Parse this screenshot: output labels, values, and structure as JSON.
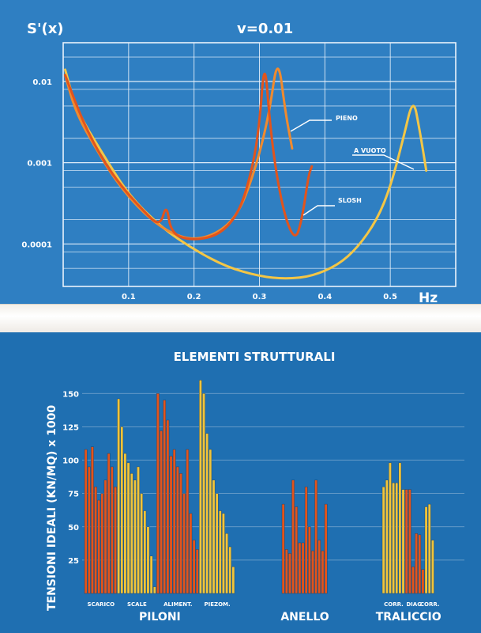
{
  "chart_data": [
    {
      "type": "line",
      "title": "v=0.01",
      "ylabel": "S'(x)",
      "xlabel": "Hz",
      "scale": {
        "y": "log"
      },
      "xlim": [
        0,
        0.6
      ],
      "ylim": [
        3e-05,
        0.03
      ],
      "x_ticks": [
        "0.1",
        "0.2",
        "0.3",
        "0.4",
        "0.5"
      ],
      "y_ticks": [
        "0.01",
        "0.001",
        "0.0001"
      ],
      "grid": true,
      "colors": {
        "background": "#2f7fc2",
        "grid": "#e9f2fb",
        "pieno": "#f08a2e",
        "a_vuoto": "#f3c646",
        "slosh": "#e2541c"
      },
      "series": [
        {
          "name": "PIENO",
          "points": [
            [
              0.003,
              0.012
            ],
            [
              0.02,
              0.004
            ],
            [
              0.05,
              0.0015
            ],
            [
              0.08,
              0.0006
            ],
            [
              0.12,
              0.00025
            ],
            [
              0.16,
              0.00014
            ],
            [
              0.2,
              0.00011
            ],
            [
              0.24,
              0.00014
            ],
            [
              0.27,
              0.00025
            ],
            [
              0.295,
              0.0009
            ],
            [
              0.315,
              0.004
            ],
            [
              0.328,
              0.022
            ],
            [
              0.34,
              0.004
            ],
            [
              0.35,
              0.0015
            ]
          ]
        },
        {
          "name": "A VUOTO",
          "points": [
            [
              0.003,
              0.014
            ],
            [
              0.02,
              0.0045
            ],
            [
              0.06,
              0.0013
            ],
            [
              0.1,
              0.0004
            ],
            [
              0.15,
              0.00016
            ],
            [
              0.2,
              8.5e-05
            ],
            [
              0.25,
              5.2e-05
            ],
            [
              0.3,
              4e-05
            ],
            [
              0.34,
              3.7e-05
            ],
            [
              0.38,
              4e-05
            ],
            [
              0.42,
              5.5e-05
            ],
            [
              0.45,
              9e-05
            ],
            [
              0.48,
              0.0002
            ],
            [
              0.5,
              0.0005
            ],
            [
              0.52,
              0.002
            ],
            [
              0.535,
              0.0065
            ],
            [
              0.545,
              0.0025
            ],
            [
              0.555,
              0.0008
            ]
          ]
        },
        {
          "name": "SLOSH",
          "points": [
            [
              0.003,
              0.012
            ],
            [
              0.03,
              0.0032
            ],
            [
              0.06,
              0.0011
            ],
            [
              0.09,
              0.0005
            ],
            [
              0.12,
              0.00027
            ],
            [
              0.148,
              0.00016
            ],
            [
              0.158,
              0.00032
            ],
            [
              0.165,
              0.00013
            ],
            [
              0.2,
              0.00011
            ],
            [
              0.24,
              0.00013
            ],
            [
              0.27,
              0.00025
            ],
            [
              0.29,
              0.0009
            ],
            [
              0.3,
              0.003
            ],
            [
              0.308,
              0.02
            ],
            [
              0.316,
              0.003
            ],
            [
              0.326,
              0.0007
            ],
            [
              0.34,
              0.0002
            ],
            [
              0.355,
              0.00011
            ],
            [
              0.365,
              0.0002
            ],
            [
              0.375,
              0.0007
            ],
            [
              0.38,
              0.0009
            ]
          ]
        }
      ],
      "labels": [
        "PIENO",
        "A VUOTO",
        "SLOSH"
      ]
    },
    {
      "type": "bar",
      "title": "ELEMENTI STRUTTURALI",
      "ylabel": "TENSIONI IDEALI (KN/MQ) x 1000",
      "ylim": [
        0,
        165
      ],
      "y_ticks": [
        "25",
        "50",
        "75",
        "100",
        "125",
        "150"
      ],
      "grid": true,
      "colors": {
        "background": "#1f6fb1",
        "orange": "#e2541c",
        "yellow": "#f1c43a",
        "grid": "#b9cfe3"
      },
      "subgroup_labels": [
        "SCARICO",
        "SCALE",
        "ALIMENT.",
        "PIEZOM.",
        "CORR.",
        "DIAG.",
        "CORR."
      ],
      "group_labels": [
        "PILONI",
        "ANELLO",
        "TRALICCIO"
      ],
      "groups": [
        {
          "name": "PILONI",
          "subgroups": [
            {
              "label": "SCARICO",
              "color": "orange",
              "values": [
                108,
                95,
                110,
                80,
                70,
                75,
                85,
                105,
                95,
                80
              ]
            },
            {
              "label": "SCALE",
              "color": "yellow",
              "values": [
                146,
                125,
                105,
                98,
                90,
                85,
                95,
                75,
                62,
                50,
                28,
                5
              ]
            },
            {
              "label": "ALIMENT.",
              "color": "orange",
              "values": [
                150,
                122,
                145,
                130,
                103,
                108,
                95,
                90,
                75,
                108,
                60,
                40,
                33
              ]
            },
            {
              "label": "PIEZOM.",
              "color": "yellow",
              "values": [
                160,
                150,
                120,
                108,
                85,
                75,
                62,
                60,
                45,
                35,
                20
              ]
            }
          ]
        },
        {
          "name": "ANELLO",
          "subgroups": [
            {
              "label": "",
              "color": "orange",
              "values": [
                67,
                33,
                30,
                85,
                65,
                38,
                38,
                80,
                50,
                32,
                85,
                40,
                32,
                67
              ]
            }
          ]
        },
        {
          "name": "TRALICCIO",
          "subgroups": [
            {
              "label": "CORR.",
              "color": "yellow",
              "values": [
                80,
                85,
                98,
                83,
                83,
                98,
                78
              ]
            },
            {
              "label": "DIAG.",
              "color": "orange",
              "values": [
                78,
                78,
                20,
                45,
                44,
                18
              ]
            },
            {
              "label": "CORR.",
              "color": "yellow",
              "values": [
                65,
                67,
                40
              ]
            }
          ]
        }
      ]
    }
  ]
}
